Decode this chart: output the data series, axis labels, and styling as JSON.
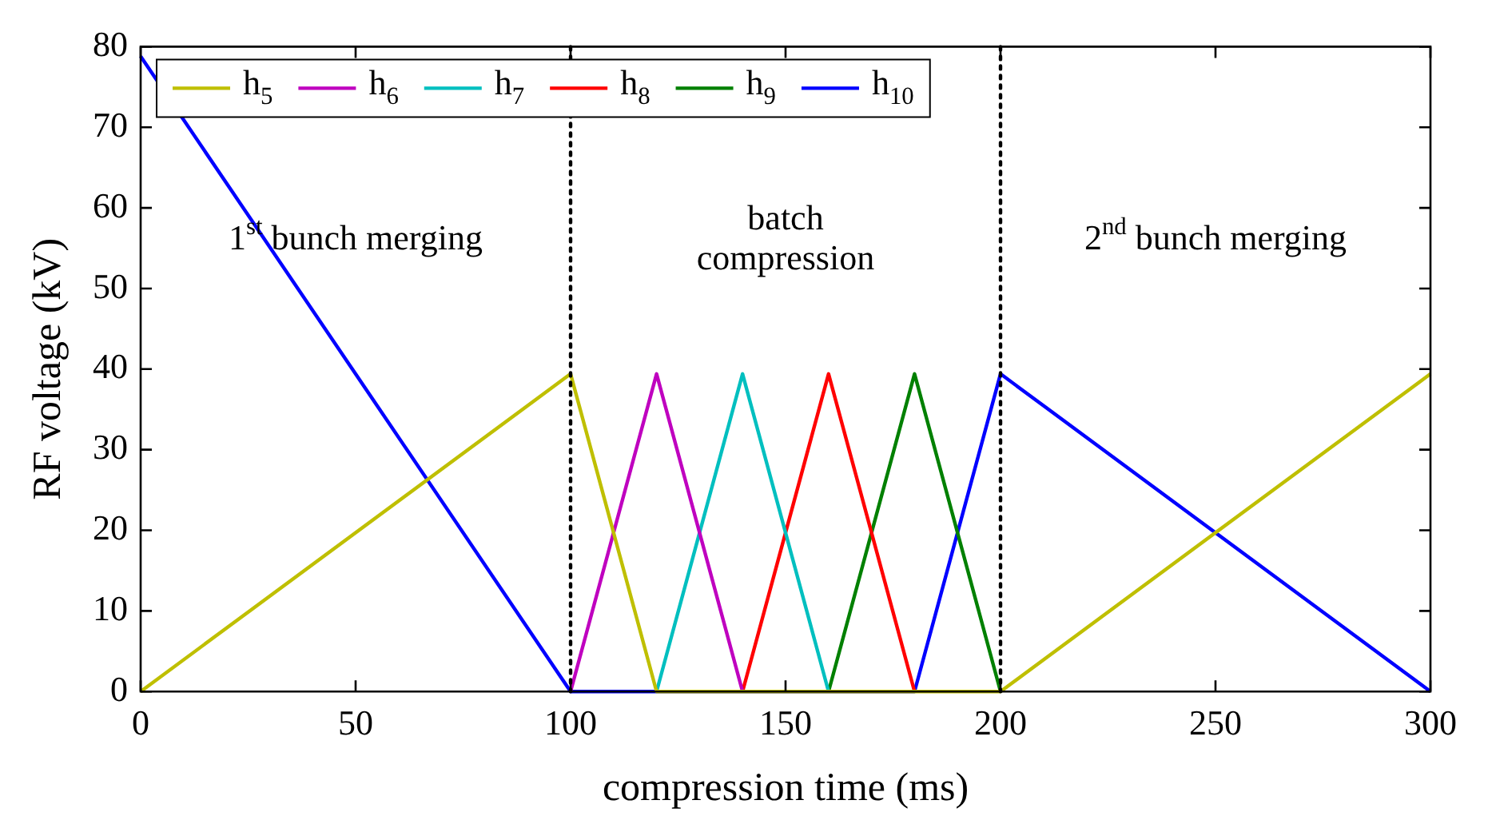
{
  "chart_data": {
    "type": "line",
    "xlabel": "compression time (ms)",
    "ylabel": "RF voltage (kV)",
    "xlim": [
      0,
      300
    ],
    "xticks": [
      0,
      50,
      100,
      150,
      200,
      250,
      300
    ],
    "ylim": [
      0,
      80
    ],
    "yticks": [
      0,
      10,
      20,
      30,
      40,
      50,
      60,
      70,
      80
    ],
    "grid": false,
    "legend": "top left",
    "marker": "none",
    "line_style": "solid",
    "series": [
      {
        "name": "h$_{5}$",
        "color": "#bfbf00",
        "x": [
          0,
          100,
          120,
          200,
          300
        ],
        "values": [
          0,
          39.4,
          0,
          0,
          39.4
        ]
      },
      {
        "name": "h$_{6}$",
        "color": "#bf00bf",
        "x": [
          100,
          120,
          140
        ],
        "values": [
          0,
          39.4,
          0
        ]
      },
      {
        "name": "h$_{7}$",
        "color": "#00bfbf",
        "x": [
          120,
          140,
          160
        ],
        "values": [
          0,
          39.4,
          0
        ]
      },
      {
        "name": "h$_{8}$",
        "color": "#ff0000",
        "x": [
          140,
          160,
          180
        ],
        "values": [
          0,
          39.4,
          0
        ]
      },
      {
        "name": "h$_{9}$",
        "color": "#008000",
        "x": [
          160,
          180,
          200
        ],
        "values": [
          0,
          39.4,
          0
        ]
      },
      {
        "name": "h$_{10}$",
        "color": "#0000ff",
        "x": [
          0,
          100,
          180,
          200,
          300
        ],
        "values": [
          78.8,
          0,
          0,
          39.4,
          0
        ]
      }
    ],
    "ref_lines": [
      {
        "axis": "x",
        "value": 100,
        "color": "#000000",
        "line_style": "dotted"
      },
      {
        "axis": "x",
        "value": 200,
        "color": "#000000",
        "line_style": "dotted"
      }
    ],
    "annotations": [
      "1$^{st}$ bunch merging",
      "batch\ncompression",
      "2$^{nd}$ bunch merging"
    ]
  }
}
